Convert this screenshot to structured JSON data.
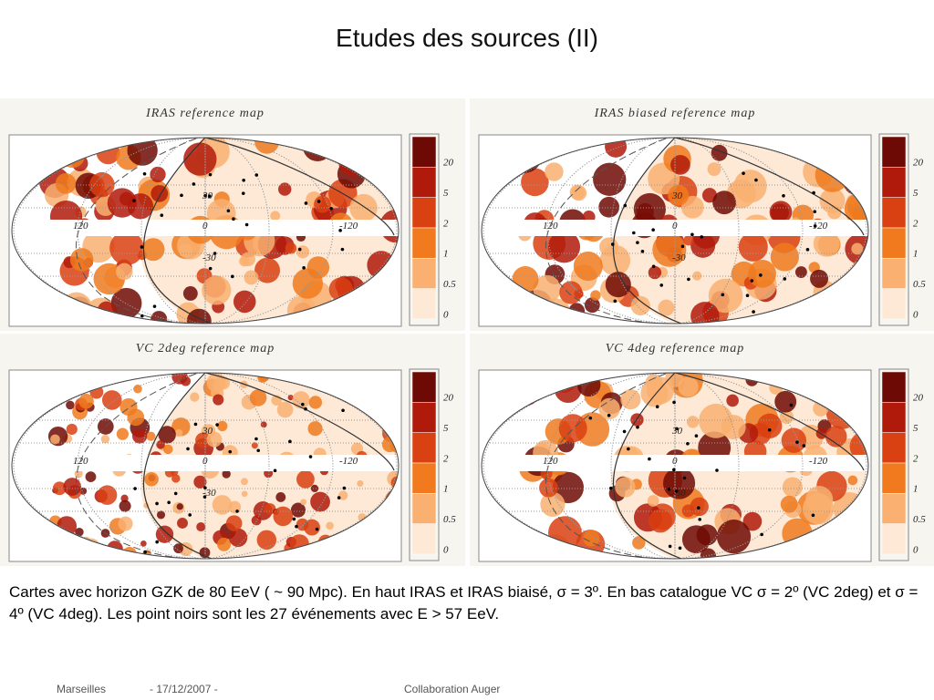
{
  "title": "Etudes des sources (II)",
  "maps": [
    {
      "title": "IRAS reference map"
    },
    {
      "title": "IRAS biased reference map"
    },
    {
      "title": "VC 2deg reference map"
    },
    {
      "title": "VC 4deg reference map"
    }
  ],
  "grid_labels": [
    "30",
    "0",
    "-30",
    "120",
    "-120"
  ],
  "colorbar_labels": [
    "20",
    "5",
    "2",
    "1",
    "0.5",
    "0"
  ],
  "caption": "Cartes avec horizon GZK de 80 EeV ( ~ 90 Mpc). En haut IRAS et IRAS biaisé, σ = 3º. En bas catalogue VC σ = 2º (VC 2deg) et σ = 4º (VC 4deg). Les point noirs sont les  27 événements avec E > 57 EeV.",
  "footer": {
    "place": "Marseilles",
    "date": "- 17/12/2007 -",
    "org": "Collaboration Auger"
  }
}
